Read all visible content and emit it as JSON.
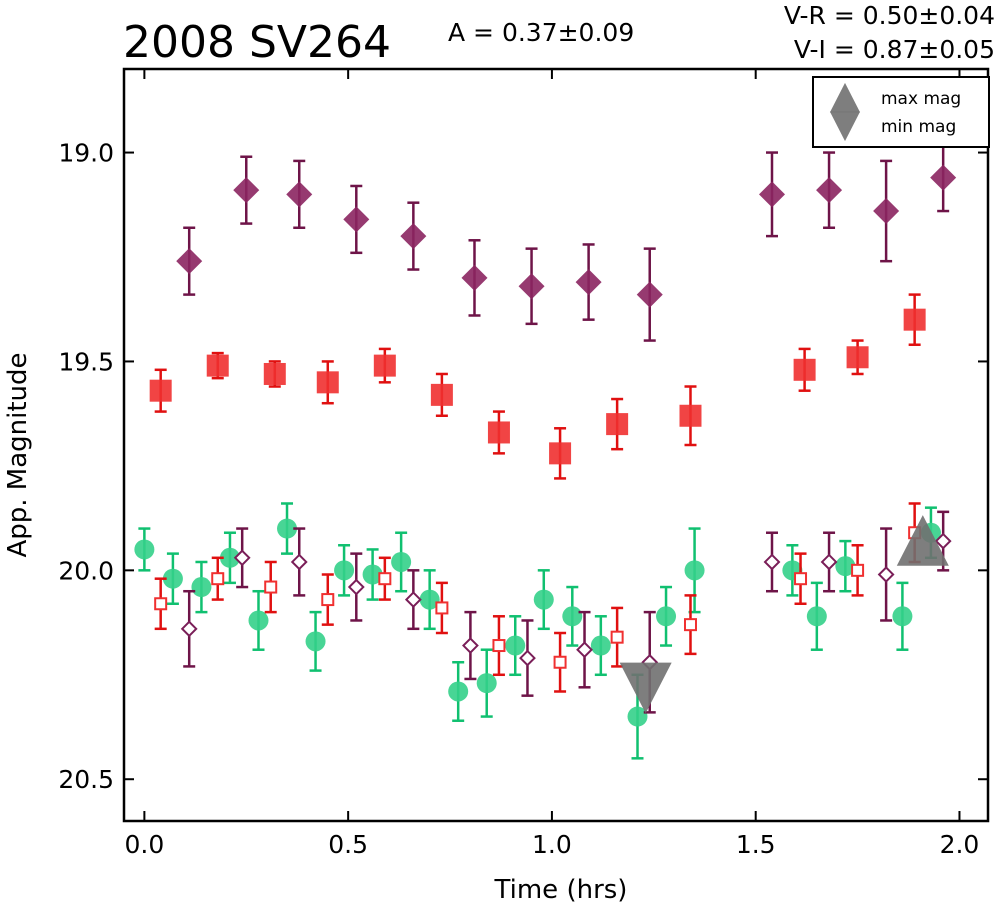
{
  "chart_data": {
    "type": "scatter",
    "title": "2008 SV264",
    "annotations": {
      "amplitude": "A  = 0.37±0.09",
      "v_minus_r": "V-R = 0.50±0.04",
      "v_minus_i": "V-I  = 0.87±0.05"
    },
    "xlabel": "Time (hrs)",
    "ylabel": "App. Magnitude",
    "xlim": [
      -0.05,
      2.07
    ],
    "ylim": [
      20.6,
      18.8
    ],
    "y_inverted": true,
    "grid": false,
    "xticks": [
      0.0,
      0.5,
      1.0,
      1.5,
      2.0
    ],
    "xtick_labels": [
      "0.0",
      "0.5",
      "1.0",
      "1.5",
      "2.0"
    ],
    "yticks": [
      19.0,
      19.5,
      20.0,
      20.5
    ],
    "ytick_labels": [
      "19.0",
      "19.5",
      "20.0",
      "20.5"
    ],
    "legend": {
      "placement": "top-right",
      "entries": [
        {
          "label": "max mag",
          "marker": "triangle-up",
          "color": "#707070"
        },
        {
          "label": "min mag",
          "marker": "triangle-down",
          "color": "#707070"
        }
      ]
    },
    "series": [
      {
        "marker": "diamond-filled",
        "color": "#8b2560",
        "ecolor": "#6e1448",
        "points": [
          {
            "x": 0.11,
            "y": 19.26,
            "err": 0.08
          },
          {
            "x": 0.25,
            "y": 19.09,
            "err": 0.08
          },
          {
            "x": 0.38,
            "y": 19.1,
            "err": 0.08
          },
          {
            "x": 0.52,
            "y": 19.16,
            "err": 0.08
          },
          {
            "x": 0.66,
            "y": 19.2,
            "err": 0.08
          },
          {
            "x": 0.81,
            "y": 19.3,
            "err": 0.09
          },
          {
            "x": 0.95,
            "y": 19.32,
            "err": 0.09
          },
          {
            "x": 1.09,
            "y": 19.31,
            "err": 0.09
          },
          {
            "x": 1.24,
            "y": 19.34,
            "err": 0.11
          },
          {
            "x": 1.54,
            "y": 19.1,
            "err": 0.1
          },
          {
            "x": 1.68,
            "y": 19.09,
            "err": 0.09
          },
          {
            "x": 1.82,
            "y": 19.14,
            "err": 0.12
          },
          {
            "x": 1.96,
            "y": 19.06,
            "err": 0.08
          }
        ]
      },
      {
        "marker": "square-filled",
        "color": "#f03030",
        "ecolor": "#e01010",
        "points": [
          {
            "x": 0.04,
            "y": 19.57,
            "err": 0.05
          },
          {
            "x": 0.18,
            "y": 19.51,
            "err": 0.03
          },
          {
            "x": 0.32,
            "y": 19.53,
            "err": 0.03
          },
          {
            "x": 0.45,
            "y": 19.55,
            "err": 0.05
          },
          {
            "x": 0.59,
            "y": 19.51,
            "err": 0.04
          },
          {
            "x": 0.73,
            "y": 19.58,
            "err": 0.05
          },
          {
            "x": 0.87,
            "y": 19.67,
            "err": 0.05
          },
          {
            "x": 1.02,
            "y": 19.72,
            "err": 0.06
          },
          {
            "x": 1.16,
            "y": 19.65,
            "err": 0.06
          },
          {
            "x": 1.34,
            "y": 19.63,
            "err": 0.07
          },
          {
            "x": 1.62,
            "y": 19.52,
            "err": 0.05
          },
          {
            "x": 1.75,
            "y": 19.49,
            "err": 0.04
          },
          {
            "x": 1.89,
            "y": 19.4,
            "err": 0.06
          }
        ]
      },
      {
        "marker": "circle-filled",
        "color": "#34d08a",
        "ecolor": "#10c070",
        "points": [
          {
            "x": 0.0,
            "y": 19.95,
            "err": 0.05
          },
          {
            "x": 0.07,
            "y": 20.02,
            "err": 0.06
          },
          {
            "x": 0.14,
            "y": 20.04,
            "err": 0.06
          },
          {
            "x": 0.21,
            "y": 19.97,
            "err": 0.06
          },
          {
            "x": 0.28,
            "y": 20.12,
            "err": 0.07
          },
          {
            "x": 0.35,
            "y": 19.9,
            "err": 0.06
          },
          {
            "x": 0.42,
            "y": 20.17,
            "err": 0.07
          },
          {
            "x": 0.49,
            "y": 20.0,
            "err": 0.06
          },
          {
            "x": 0.56,
            "y": 20.01,
            "err": 0.06
          },
          {
            "x": 0.63,
            "y": 19.98,
            "err": 0.07
          },
          {
            "x": 0.7,
            "y": 20.07,
            "err": 0.07
          },
          {
            "x": 0.77,
            "y": 20.29,
            "err": 0.07
          },
          {
            "x": 0.84,
            "y": 20.27,
            "err": 0.08
          },
          {
            "x": 0.91,
            "y": 20.18,
            "err": 0.07
          },
          {
            "x": 0.98,
            "y": 20.07,
            "err": 0.07
          },
          {
            "x": 1.05,
            "y": 20.11,
            "err": 0.07
          },
          {
            "x": 1.12,
            "y": 20.18,
            "err": 0.07
          },
          {
            "x": 1.21,
            "y": 20.35,
            "err": 0.1
          },
          {
            "x": 1.28,
            "y": 20.11,
            "err": 0.07
          },
          {
            "x": 1.35,
            "y": 20.0,
            "err": 0.1
          },
          {
            "x": 1.59,
            "y": 20.0,
            "err": 0.06
          },
          {
            "x": 1.65,
            "y": 20.11,
            "err": 0.08
          },
          {
            "x": 1.72,
            "y": 19.99,
            "err": 0.06
          },
          {
            "x": 1.86,
            "y": 20.11,
            "err": 0.08
          },
          {
            "x": 1.93,
            "y": 19.91,
            "err": 0.06
          }
        ]
      },
      {
        "marker": "diamond-open",
        "color": "#7a1e58",
        "ecolor": "#6e1448",
        "points": [
          {
            "x": 0.11,
            "y": 20.14,
            "err": 0.09
          },
          {
            "x": 0.24,
            "y": 19.97,
            "err": 0.07
          },
          {
            "x": 0.38,
            "y": 19.98,
            "err": 0.08
          },
          {
            "x": 0.52,
            "y": 20.04,
            "err": 0.08
          },
          {
            "x": 0.66,
            "y": 20.07,
            "err": 0.07
          },
          {
            "x": 0.8,
            "y": 20.18,
            "err": 0.08
          },
          {
            "x": 0.94,
            "y": 20.21,
            "err": 0.09
          },
          {
            "x": 1.08,
            "y": 20.19,
            "err": 0.09
          },
          {
            "x": 1.24,
            "y": 20.22,
            "err": 0.12
          },
          {
            "x": 1.54,
            "y": 19.98,
            "err": 0.07
          },
          {
            "x": 1.68,
            "y": 19.98,
            "err": 0.07
          },
          {
            "x": 1.82,
            "y": 20.01,
            "err": 0.11
          },
          {
            "x": 1.96,
            "y": 19.93,
            "err": 0.07
          }
        ]
      },
      {
        "marker": "square-open",
        "color": "#f03030",
        "ecolor": "#e01010",
        "points": [
          {
            "x": 0.04,
            "y": 20.08,
            "err": 0.06
          },
          {
            "x": 0.18,
            "y": 20.02,
            "err": 0.05
          },
          {
            "x": 0.31,
            "y": 20.04,
            "err": 0.06
          },
          {
            "x": 0.45,
            "y": 20.07,
            "err": 0.06
          },
          {
            "x": 0.59,
            "y": 20.02,
            "err": 0.05
          },
          {
            "x": 0.73,
            "y": 20.09,
            "err": 0.06
          },
          {
            "x": 0.87,
            "y": 20.18,
            "err": 0.07
          },
          {
            "x": 1.02,
            "y": 20.22,
            "err": 0.07
          },
          {
            "x": 1.16,
            "y": 20.16,
            "err": 0.07
          },
          {
            "x": 1.34,
            "y": 20.13,
            "err": 0.07
          },
          {
            "x": 1.61,
            "y": 20.02,
            "err": 0.06
          },
          {
            "x": 1.75,
            "y": 20.0,
            "err": 0.06
          },
          {
            "x": 1.89,
            "y": 19.91,
            "err": 0.07
          }
        ]
      },
      {
        "marker": "triangle-down",
        "color": "#707070",
        "points": [
          {
            "x": 1.23,
            "y": 20.28
          }
        ]
      },
      {
        "marker": "triangle-up",
        "color": "#707070",
        "points": [
          {
            "x": 1.91,
            "y": 19.93
          }
        ]
      }
    ]
  }
}
